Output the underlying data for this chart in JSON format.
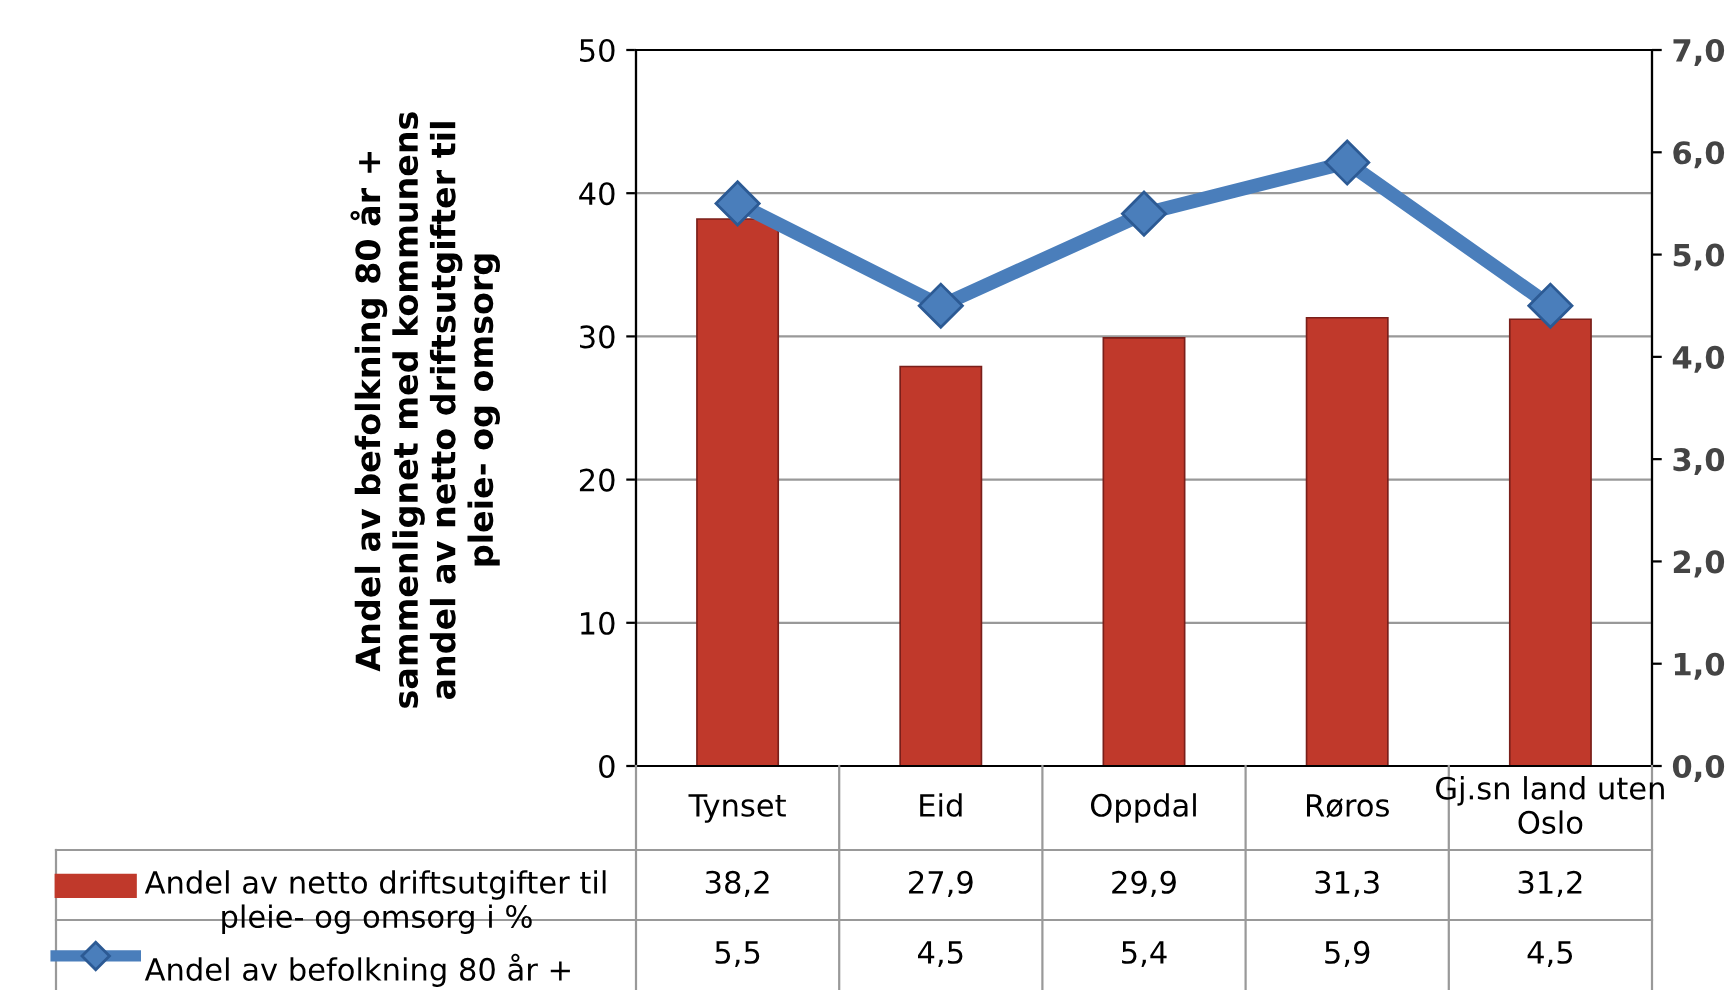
{
  "chart_data": {
    "type": "bar",
    "ylabel": "Andel av befolkning 80 år + sammenlignet med kommunens andel av netto driftsutgifter til pleie- og omsorg",
    "categories": [
      "Tynset",
      "Eid",
      "Oppdal",
      "Røros",
      "Gj.sn land uten Oslo"
    ],
    "series": [
      {
        "name": "Andel av netto driftsutgifter til pleie- og omsorg i %",
        "color": "#c0392b",
        "values": [
          38.2,
          27.9,
          29.9,
          31.3,
          31.2
        ],
        "value_labels": [
          "38,2",
          "27,9",
          "29,9",
          "31,3",
          "31,2"
        ]
      },
      {
        "name": "Andel av befolkning 80 år +",
        "color": "#4a7ebb",
        "type": "line",
        "axis": "y2",
        "marker": "diamond",
        "values": [
          5.5,
          4.5,
          5.4,
          5.9,
          4.5
        ],
        "value_labels": [
          "5,5",
          "4,5",
          "5,4",
          "5,9",
          "4,5"
        ]
      }
    ],
    "ylim": [
      0,
      50
    ],
    "yticks": [
      0,
      10,
      20,
      30,
      40,
      50
    ],
    "y2lim": [
      0,
      7
    ],
    "y2ticks": [
      {
        "value": 0,
        "label": "0,0"
      },
      {
        "value": 1,
        "label": "1,0"
      },
      {
        "value": 2,
        "label": "2,0"
      },
      {
        "value": 3,
        "label": "3,0"
      },
      {
        "value": 4,
        "label": "4,0"
      },
      {
        "value": 5,
        "label": "5,0"
      },
      {
        "value": 6,
        "label": "6,0"
      },
      {
        "value": 7,
        "label": "7,0"
      }
    ],
    "grid": "y",
    "legend": "bottom"
  }
}
